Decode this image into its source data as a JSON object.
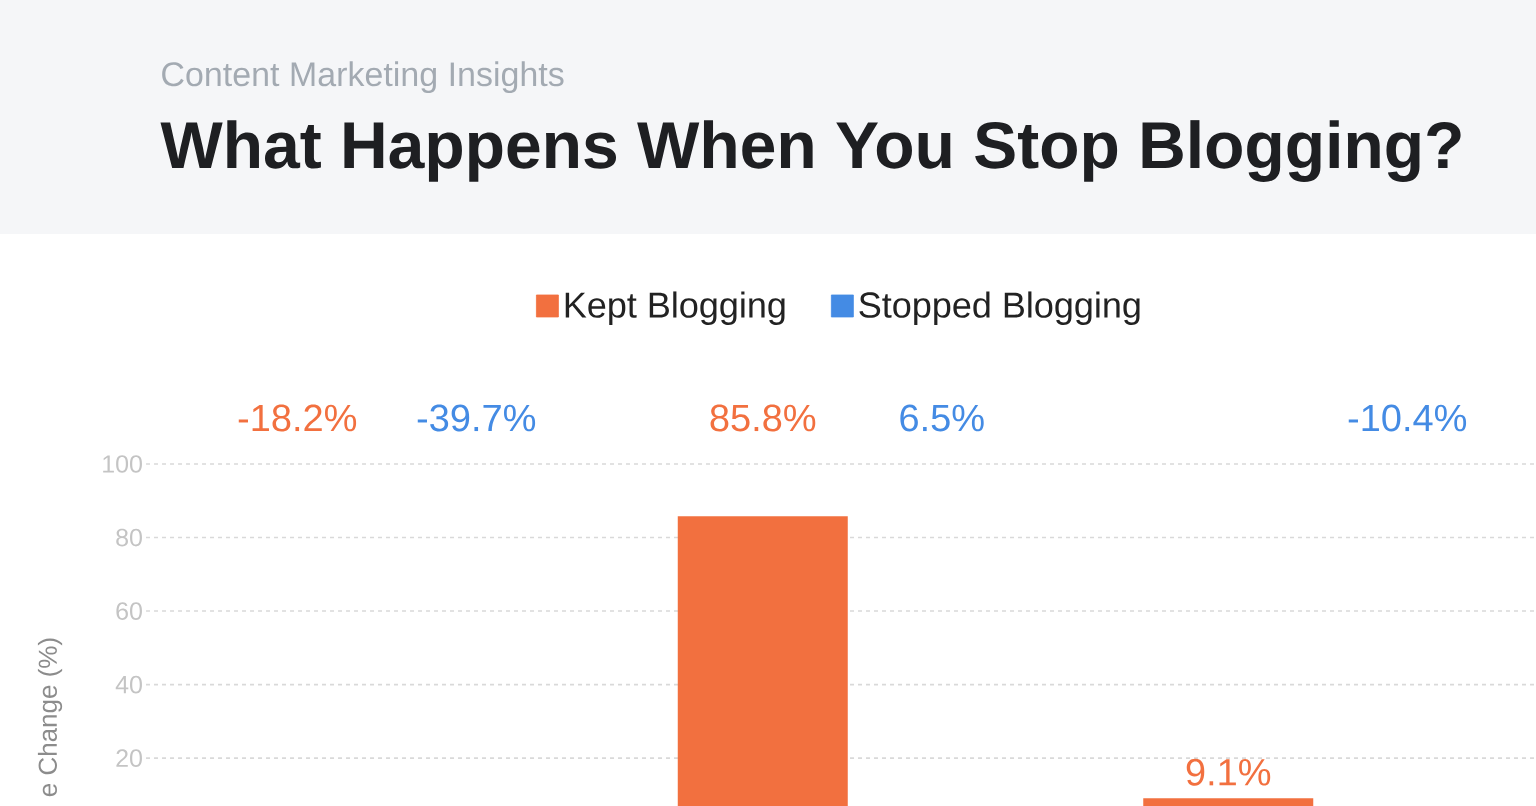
{
  "chart_data": {
    "type": "bar",
    "title": "What Happens When You Stop Blogging?",
    "subtitle": "Content Marketing Insights",
    "ylabel": "e Change (%)",
    "categories": [
      null,
      null,
      null
    ],
    "series": [
      {
        "name": "Kept Blogging",
        "color": "#f2703f",
        "values": [
          null,
          85.8,
          9.1
        ],
        "value_labels": [
          "-18.2%",
          "85.8%",
          "9.1%"
        ]
      },
      {
        "name": "Stopped Blogging",
        "color": "#448be4",
        "values": [
          null,
          null,
          null
        ],
        "value_labels": [
          "-39.7%",
          "6.5%",
          "-10.4%"
        ]
      }
    ],
    "ylim": [
      7,
      100
    ],
    "yticks": [
      20,
      40,
      60,
      80,
      100
    ],
    "grid": "y",
    "legend": "top",
    "tick_labels": "y"
  }
}
